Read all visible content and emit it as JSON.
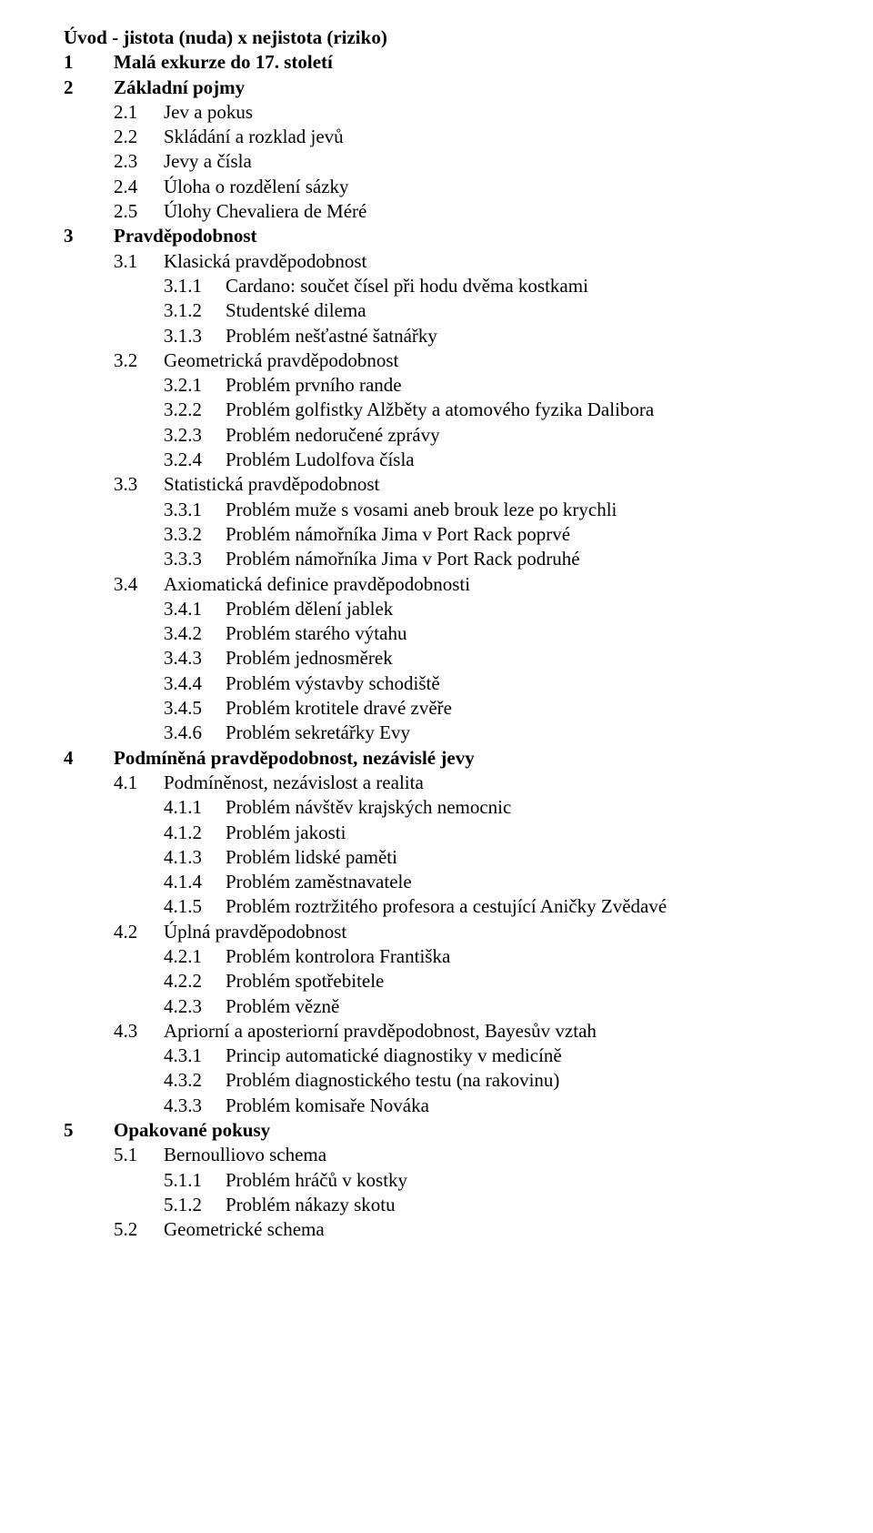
{
  "font": {
    "family": "Times New Roman",
    "size_pt": 16,
    "color": "#000000"
  },
  "background_color": "#ffffff",
  "toc": [
    {
      "level": 0,
      "num": "",
      "text": "Úvod - jistota (nuda) x nejistota (riziko)",
      "bold": true
    },
    {
      "level": 0,
      "num": "1",
      "text": "Malá exkurze do 17. století",
      "bold": true
    },
    {
      "level": 0,
      "num": "2",
      "text": "Základní pojmy",
      "bold": true
    },
    {
      "level": 1,
      "num": "2.1",
      "text": "Jev a pokus"
    },
    {
      "level": 1,
      "num": "2.2",
      "text": "Skládání a rozklad jevů"
    },
    {
      "level": 1,
      "num": "2.3",
      "text": "Jevy a čísla"
    },
    {
      "level": 1,
      "num": "2.4",
      "text": "Úloha o rozdělení sázky"
    },
    {
      "level": 1,
      "num": "2.5",
      "text": "Úlohy Chevaliera de Méré"
    },
    {
      "level": 0,
      "num": "3",
      "text": "Pravděpodobnost",
      "bold": true
    },
    {
      "level": 1,
      "num": "3.1",
      "text": "Klasická pravděpodobnost"
    },
    {
      "level": 2,
      "num": "3.1.1",
      "text": "Cardano: součet čísel při hodu dvěma kostkami"
    },
    {
      "level": 2,
      "num": "3.1.2",
      "text": "Studentské dilema"
    },
    {
      "level": 2,
      "num": "3.1.3",
      "text": "Problém nešťastné šatnářky"
    },
    {
      "level": 1,
      "num": "3.2",
      "text": "Geometrická pravděpodobnost"
    },
    {
      "level": 2,
      "num": "3.2.1",
      "text": "Problém prvního rande"
    },
    {
      "level": 2,
      "num": "3.2.2",
      "text": "Problém golfistky Alžběty a atomového fyzika Dalibora"
    },
    {
      "level": 2,
      "num": "3.2.3",
      "text": "Problém nedoručené zprávy"
    },
    {
      "level": 2,
      "num": "3.2.4",
      "text": "Problém Ludolfova čísla"
    },
    {
      "level": 1,
      "num": "3.3",
      "text": "Statistická pravděpodobnost"
    },
    {
      "level": 2,
      "num": "3.3.1",
      "text": "Problém muže s vosami aneb brouk leze po krychli"
    },
    {
      "level": 2,
      "num": "3.3.2",
      "text": "Problém námořníka Jima v Port Rack poprvé"
    },
    {
      "level": 2,
      "num": "3.3.3",
      "text": "Problém námořníka Jima v Port Rack podruhé"
    },
    {
      "level": 1,
      "num": "3.4",
      "text": "Axiomatická definice pravděpodobnosti"
    },
    {
      "level": 2,
      "num": "3.4.1",
      "text": "Problém dělení jablek"
    },
    {
      "level": 2,
      "num": "3.4.2",
      "text": "Problém starého výtahu"
    },
    {
      "level": 2,
      "num": "3.4.3",
      "text": "Problém jednosměrek"
    },
    {
      "level": 2,
      "num": "3.4.4",
      "text": "Problém výstavby schodiště"
    },
    {
      "level": 2,
      "num": "3.4.5",
      "text": "Problém krotitele dravé zvěře"
    },
    {
      "level": 2,
      "num": "3.4.6",
      "text": "Problém sekretářky Evy"
    },
    {
      "level": 0,
      "num": "4",
      "text": "Podmíněná pravděpodobnost, nezávislé jevy",
      "bold": true
    },
    {
      "level": 1,
      "num": "4.1",
      "text": "Podmíněnost, nezávislost a realita"
    },
    {
      "level": 2,
      "num": "4.1.1",
      "text": "Problém návštěv krajských nemocnic"
    },
    {
      "level": 2,
      "num": "4.1.2",
      "text": "Problém jakosti"
    },
    {
      "level": 2,
      "num": "4.1.3",
      "text": "Problém lidské paměti"
    },
    {
      "level": 2,
      "num": "4.1.4",
      "text": "Problém zaměstnavatele"
    },
    {
      "level": 2,
      "num": "4.1.5",
      "text": "Problém roztržitého profesora a cestující Aničky Zvědavé"
    },
    {
      "level": 1,
      "num": "4.2",
      "text": "Úplná pravděpodobnost"
    },
    {
      "level": 2,
      "num": "4.2.1",
      "text": "Problém kontrolora Františka"
    },
    {
      "level": 2,
      "num": "4.2.2",
      "text": "Problém spotřebitele"
    },
    {
      "level": 2,
      "num": "4.2.3",
      "text": "Problém vězně"
    },
    {
      "level": 1,
      "num": "4.3",
      "text": "Apriorní a aposteriorní pravděpodobnost, Bayesův vztah"
    },
    {
      "level": 2,
      "num": "4.3.1",
      "text": "Princip automatické diagnostiky v medicíně"
    },
    {
      "level": 2,
      "num": "4.3.2",
      "text": "Problém diagnostického testu (na rakovinu)"
    },
    {
      "level": 2,
      "num": "4.3.3",
      "text": "Problém komisaře Nováka"
    },
    {
      "level": 0,
      "num": "5",
      "text": "Opakované pokusy",
      "bold": true
    },
    {
      "level": 1,
      "num": "5.1",
      "text": "Bernoulliovo schema"
    },
    {
      "level": 2,
      "num": "5.1.1",
      "text": "Problém hráčů v kostky"
    },
    {
      "level": 2,
      "num": "5.1.2",
      "text": "Problém nákazy skotu"
    },
    {
      "level": 1,
      "num": "5.2",
      "text": "Geometrické schema"
    }
  ]
}
